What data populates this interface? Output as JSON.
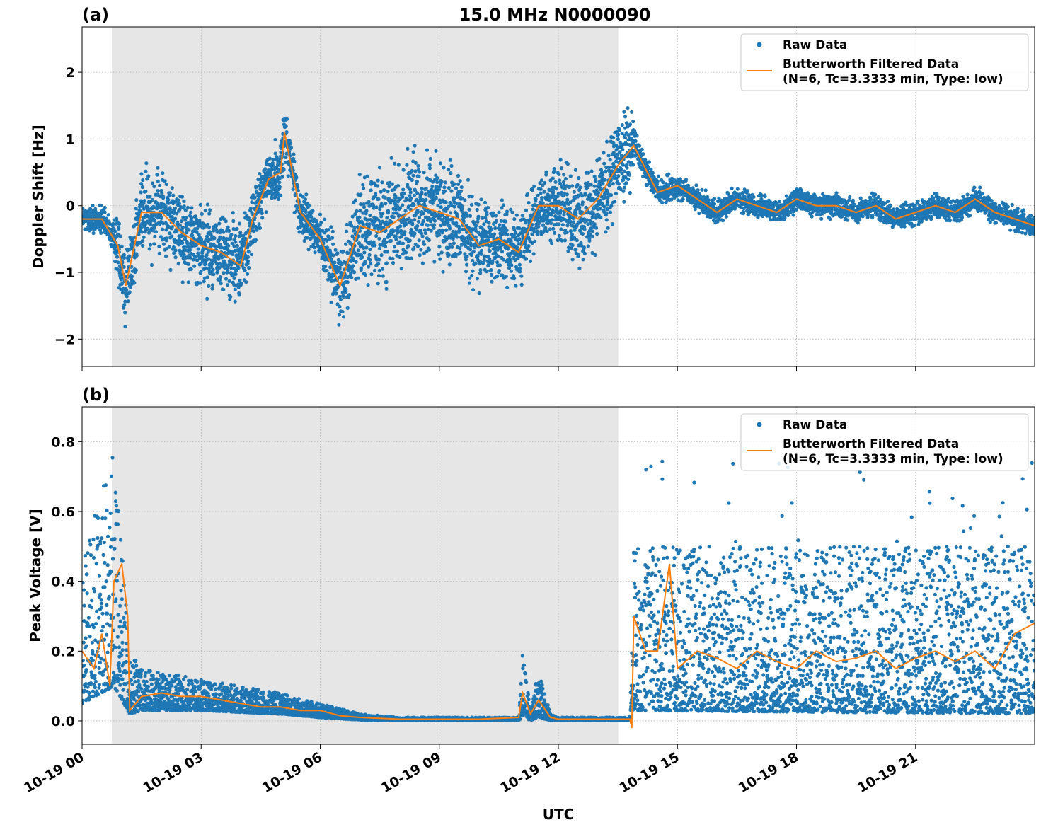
{
  "title": "15.0 MHz N0000090",
  "xlabel": "UTC",
  "legend": {
    "raw": "Raw Data",
    "filtered_line1": "Butterworth Filtered Data",
    "filtered_line2": "(N=6, Tc=3.3333 min, Type: low)"
  },
  "colors": {
    "raw": "#1f77b4",
    "filtered": "#ff7f0e",
    "shade": "#e6e6e6"
  },
  "chart_data": [
    {
      "type": "scatter",
      "panel_label": "(a)",
      "ylabel": "Doppler Shift [Hz]",
      "xlim_hours": [
        0,
        24
      ],
      "ylim": [
        -2.41,
        2.68
      ],
      "yticks": [
        2,
        1,
        0,
        -1,
        -2
      ],
      "ytick_labels": [
        "2",
        "1",
        "0",
        "−1",
        "−2"
      ],
      "xticks_hours": [
        0,
        3,
        6,
        9,
        12,
        15,
        18,
        21
      ],
      "xtick_labels": [
        "10-19 00",
        "10-19 03",
        "10-19 06",
        "10-19 09",
        "10-19 12",
        "10-19 15",
        "10-19 18",
        "10-19 21"
      ],
      "shaded_interval_hours": [
        0.75,
        13.51
      ],
      "grid": true,
      "legend_position": "top-right",
      "filtered_series": {
        "x_hours": [
          0,
          0.5,
          0.9,
          1.1,
          1.5,
          2,
          2.5,
          3,
          3.5,
          4,
          4.3,
          4.7,
          5,
          5.1,
          5.5,
          6,
          6.5,
          7,
          7.5,
          8,
          8.5,
          9,
          9.5,
          10,
          10.5,
          11,
          11.5,
          12,
          12.5,
          13,
          13.5,
          13.9,
          14.5,
          15,
          15.5,
          16,
          16.5,
          17,
          17.5,
          18,
          18.5,
          19,
          19.5,
          20,
          20.5,
          21,
          21.5,
          22,
          22.5,
          23,
          23.5,
          24
        ],
        "y": [
          -0.2,
          -0.2,
          -0.6,
          -1.2,
          -0.1,
          -0.1,
          -0.4,
          -0.6,
          -0.7,
          -0.9,
          -0.2,
          0.4,
          0.5,
          1.1,
          -0.1,
          -0.5,
          -1.2,
          -0.3,
          -0.4,
          -0.2,
          0.0,
          -0.1,
          -0.2,
          -0.6,
          -0.5,
          -0.7,
          0.0,
          0.0,
          -0.2,
          0.1,
          0.6,
          0.9,
          0.2,
          0.3,
          0.1,
          -0.1,
          0.1,
          0.0,
          -0.1,
          0.1,
          0.0,
          0.0,
          -0.1,
          0.0,
          -0.2,
          -0.1,
          0.0,
          -0.1,
          0.1,
          -0.1,
          -0.2,
          -0.3
        ]
      },
      "raw_spread": {
        "x_hours": [
          0,
          0.75,
          1,
          4,
          4.5,
          5,
          5.5,
          6,
          7,
          8,
          9,
          10,
          11,
          11.5,
          12,
          13,
          13.8,
          14,
          16,
          24
        ],
        "half_width": [
          0.3,
          0.3,
          0.9,
          0.9,
          0.6,
          0.7,
          0.5,
          0.5,
          1.1,
          1.2,
          1.2,
          0.9,
          0.8,
          0.6,
          0.9,
          1.0,
          0.9,
          0.3,
          0.25,
          0.25
        ]
      }
    },
    {
      "type": "scatter",
      "panel_label": "(b)",
      "ylabel": "Peak Voltage [V]",
      "xlim_hours": [
        0,
        24
      ],
      "ylim": [
        -0.067,
        0.9
      ],
      "yticks": [
        0.8,
        0.6,
        0.4,
        0.2,
        0.0
      ],
      "ytick_labels": [
        "0.8",
        "0.6",
        "0.4",
        "0.2",
        "0.0"
      ],
      "xticks_hours": [
        0,
        3,
        6,
        9,
        12,
        15,
        18,
        21
      ],
      "xtick_labels": [
        "10-19 00",
        "10-19 03",
        "10-19 06",
        "10-19 09",
        "10-19 12",
        "10-19 15",
        "10-19 18",
        "10-19 21"
      ],
      "shaded_interval_hours": [
        0.75,
        13.51
      ],
      "grid": true,
      "legend_position": "top-right",
      "filtered_series": {
        "x_hours": [
          0,
          0.3,
          0.5,
          0.7,
          0.8,
          1.0,
          1.15,
          1.2,
          1.5,
          2,
          2.5,
          3,
          3.5,
          4,
          4.5,
          5,
          5.5,
          6,
          6.5,
          7,
          8,
          9,
          10,
          11,
          11.1,
          11.3,
          11.5,
          11.8,
          12,
          13,
          13.8,
          13.85,
          13.9,
          14.2,
          14.5,
          14.8,
          15,
          15.5,
          16,
          16.5,
          17,
          17.5,
          18,
          18.5,
          19,
          19.5,
          20,
          20.5,
          21,
          21.5,
          22,
          22.5,
          23,
          23.5,
          24
        ],
        "y": [
          0.2,
          0.15,
          0.25,
          0.1,
          0.4,
          0.45,
          0.3,
          0.03,
          0.07,
          0.08,
          0.07,
          0.07,
          0.06,
          0.05,
          0.04,
          0.04,
          0.03,
          0.03,
          0.015,
          0.01,
          0.005,
          0.005,
          0.005,
          0.01,
          0.08,
          0.02,
          0.06,
          0.01,
          0.005,
          0.005,
          0.005,
          -0.02,
          0.3,
          0.2,
          0.2,
          0.45,
          0.15,
          0.2,
          0.18,
          0.15,
          0.2,
          0.17,
          0.15,
          0.2,
          0.17,
          0.18,
          0.2,
          0.15,
          0.18,
          0.2,
          0.17,
          0.2,
          0.15,
          0.25,
          0.28
        ]
      },
      "raw_envelope": {
        "x_hours": [
          0,
          0.8,
          1.2,
          1.5,
          3,
          5,
          6,
          7,
          8,
          11,
          11.1,
          11.3,
          11.5,
          11.8,
          12,
          13.8,
          13.9,
          24
        ],
        "low": [
          0.05,
          0.1,
          0.02,
          0.03,
          0.03,
          0.02,
          0.01,
          0.003,
          0.002,
          0.002,
          0.01,
          0.002,
          0.01,
          0.002,
          0.002,
          0.002,
          0.03,
          0.02
        ],
        "high": [
          0.45,
          0.8,
          0.2,
          0.15,
          0.12,
          0.08,
          0.05,
          0.02,
          0.01,
          0.01,
          0.19,
          0.03,
          0.15,
          0.02,
          0.01,
          0.01,
          0.5,
          0.5
        ]
      }
    }
  ]
}
